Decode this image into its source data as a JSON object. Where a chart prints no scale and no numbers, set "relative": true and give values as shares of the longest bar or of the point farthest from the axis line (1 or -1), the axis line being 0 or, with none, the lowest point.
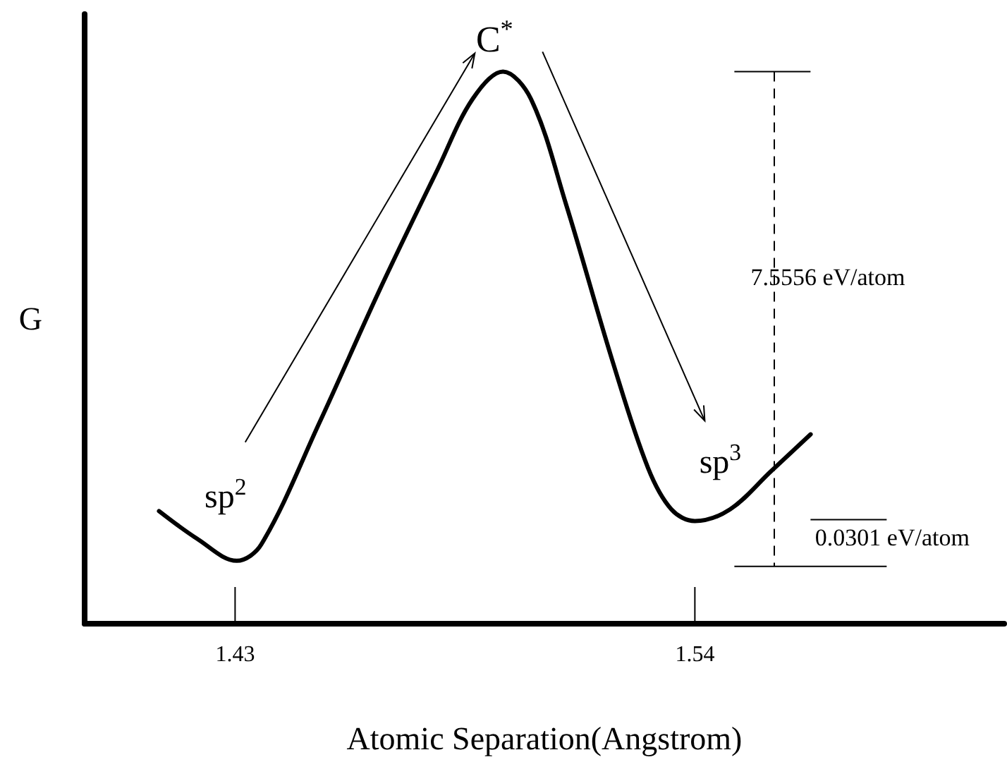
{
  "chart_data": {
    "type": "line",
    "relative": true,
    "xlabel": "Atomic Separation(Angstrom)",
    "ylabel": "G",
    "xlim": [
      1.394,
      1.614
    ],
    "xticks": [
      1.43,
      1.54
    ],
    "grid": false,
    "marker": "none",
    "line_style": "solid",
    "ref_lines": [
      {
        "axis": "x",
        "value": 1.559,
        "label": "7.5556 eV/atom",
        "line_style": "dashed",
        "color": "#000000"
      }
    ],
    "series": [
      {
        "color": "#000000",
        "x": [
          1.4118,
          1.4209,
          1.4304,
          1.4363,
          1.4503,
          1.4643,
          1.4784,
          1.4868,
          1.4941,
          1.5008,
          1.5092,
          1.5204,
          1.5288,
          1.5344,
          1.54,
          1.5484,
          1.5582,
          1.5677
        ],
        "values": [
          0.204,
          0.154,
          0.114,
          0.144,
          0.366,
          0.6,
          0.822,
          0.95,
          1.0,
          0.95,
          0.759,
          0.473,
          0.282,
          0.207,
          0.186,
          0.207,
          0.276,
          0.343
        ]
      }
    ],
    "annotations": [
      {
        "text": "C$^{*}$",
        "x": 1.4941,
        "y": 1.0
      },
      {
        "text": "sp$^{2}$",
        "x": 1.4304,
        "y": 0.114
      },
      {
        "text": "sp$^{3}$",
        "x": 1.54,
        "y": 0.186
      },
      "0.0301 eV/atom"
    ]
  }
}
